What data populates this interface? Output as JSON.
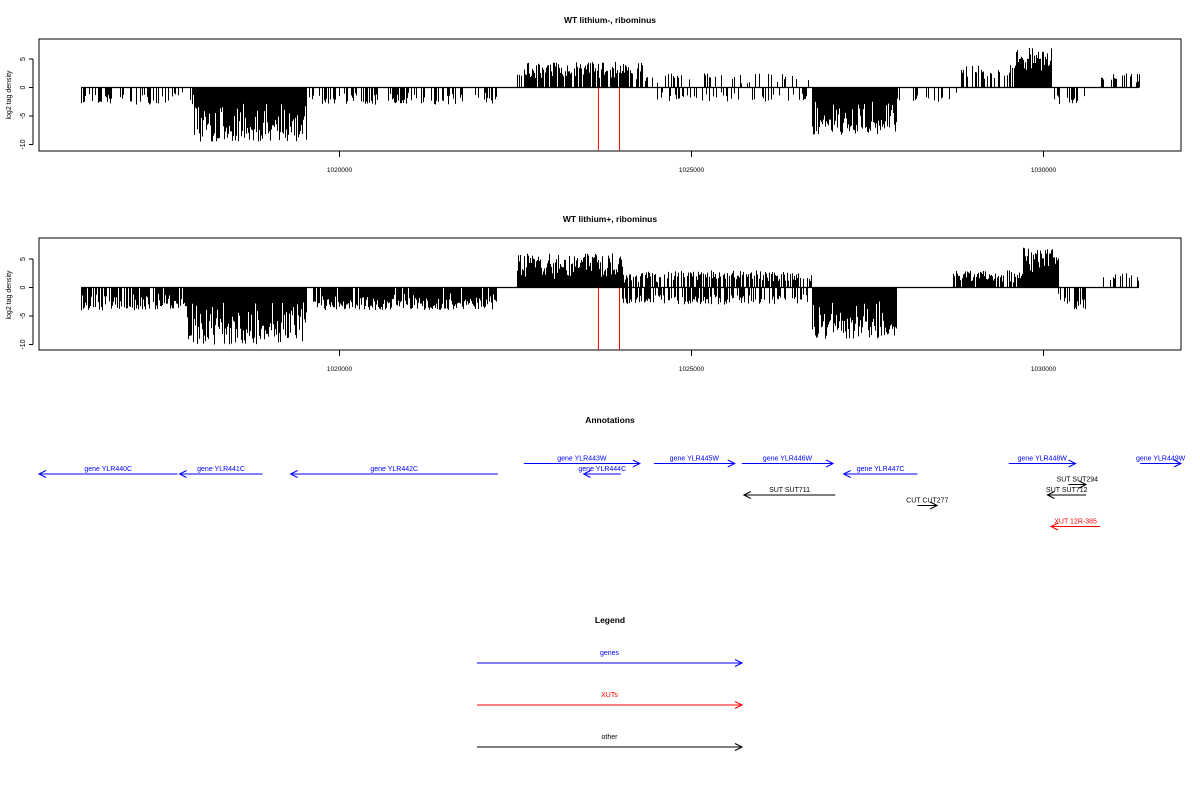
{
  "panels": [
    {
      "title": "WT lithium-, ribominus",
      "ylabel": "log2 tag density",
      "yticks": [
        "-10",
        "-5",
        "0",
        "5"
      ],
      "xticks": [
        "1020000",
        "1025000",
        "1030000"
      ]
    },
    {
      "title": "WT lithium+, ribominus",
      "ylabel": "log2 tag density",
      "yticks": [
        "-10",
        "-5",
        "0",
        "5"
      ],
      "xticks": [
        "1020000",
        "1025000",
        "1030000"
      ]
    }
  ],
  "annotations_title": "Annotations",
  "legend_title": "Legend",
  "colors": {
    "gene": "#0000ff",
    "xut": "#ff0000",
    "other": "#000000",
    "marker": "#ff0000"
  },
  "chart_data": [
    {
      "type": "bar",
      "title": "WT lithium-, ribominus",
      "ylabel": "log2 tag density",
      "xlabel": "",
      "xlim": [
        1015700,
        1031950
      ],
      "ylim": [
        -11.5,
        8.5
      ],
      "xticks": [
        1020000,
        1025000,
        1030000
      ],
      "yticks": [
        -10,
        -5,
        0,
        5
      ],
      "grid": false,
      "baseline_range": [
        1016300,
        1031350
      ],
      "markers": [
        1023660,
        1023960
      ],
      "marker_range": [
        -11,
        0
      ],
      "regions": [
        {
          "x": [
            1016300,
            1017900
          ],
          "amp": 3,
          "sign": -1,
          "density": 0.35
        },
        {
          "x": [
            1017900,
            1019500
          ],
          "amp": 9.5,
          "sign": -1,
          "density": 1.0
        },
        {
          "x": [
            1019500,
            1022200
          ],
          "amp": 3,
          "sign": -1,
          "density": 0.45
        },
        {
          "x": [
            1022500,
            1024300
          ],
          "amp": 4.5,
          "sign": 1,
          "density": 0.8
        },
        {
          "x": [
            1024300,
            1026700
          ],
          "amp": 2.5,
          "sign": 1,
          "density": 0.25
        },
        {
          "x": [
            1024500,
            1026700
          ],
          "amp": 2.5,
          "sign": -1,
          "density": 0.25
        },
        {
          "x": [
            1026700,
            1027900
          ],
          "amp": 8.5,
          "sign": -1,
          "density": 1.0
        },
        {
          "x": [
            1027900,
            1028800
          ],
          "amp": 2.5,
          "sign": -1,
          "density": 0.2
        },
        {
          "x": [
            1028800,
            1029600
          ],
          "amp": 4,
          "sign": 1,
          "density": 0.4
        },
        {
          "x": [
            1029600,
            1030100
          ],
          "amp": 7,
          "sign": 1,
          "density": 1.0
        },
        {
          "x": [
            1030100,
            1030600
          ],
          "amp": 3,
          "sign": -1,
          "density": 0.35
        },
        {
          "x": [
            1030800,
            1031350
          ],
          "amp": 2.5,
          "sign": 1,
          "density": 0.35
        }
      ]
    },
    {
      "type": "bar",
      "title": "WT lithium+, ribominus",
      "ylabel": "log2 tag density",
      "xlabel": "",
      "xlim": [
        1015700,
        1031950
      ],
      "ylim": [
        -11.5,
        8.5
      ],
      "xticks": [
        1020000,
        1025000,
        1030000
      ],
      "yticks": [
        -10,
        -5,
        0,
        5
      ],
      "grid": false,
      "baseline_range": [
        1016300,
        1031350
      ],
      "markers": [
        1023660,
        1023960
      ],
      "marker_range": [
        -11,
        0
      ],
      "regions": [
        {
          "x": [
            1016300,
            1017800
          ],
          "amp": 4,
          "sign": -1,
          "density": 0.8
        },
        {
          "x": [
            1017800,
            1019500
          ],
          "amp": 10,
          "sign": -1,
          "density": 1.0
        },
        {
          "x": [
            1019600,
            1022200
          ],
          "amp": 4,
          "sign": -1,
          "density": 0.9
        },
        {
          "x": [
            1022500,
            1024000
          ],
          "amp": 6,
          "sign": 1,
          "density": 1.0
        },
        {
          "x": [
            1024000,
            1026700
          ],
          "amp": 3,
          "sign": 1,
          "density": 0.7
        },
        {
          "x": [
            1024000,
            1026700
          ],
          "amp": 3,
          "sign": -1,
          "density": 0.6
        },
        {
          "x": [
            1026700,
            1027900
          ],
          "amp": 9,
          "sign": -1,
          "density": 1.0
        },
        {
          "x": [
            1028700,
            1029700
          ],
          "amp": 3,
          "sign": 1,
          "density": 0.8
        },
        {
          "x": [
            1029700,
            1030200
          ],
          "amp": 7,
          "sign": 1,
          "density": 1.0
        },
        {
          "x": [
            1030200,
            1030600
          ],
          "amp": 4,
          "sign": -1,
          "density": 0.6
        },
        {
          "x": [
            1030800,
            1031350
          ],
          "amp": 2.5,
          "sign": 1,
          "density": 0.35
        }
      ]
    }
  ],
  "annotations": [
    {
      "label": "gene YLR440C",
      "type": "gene",
      "dir": "left",
      "start": 1015700,
      "end": 1017670,
      "row": 2
    },
    {
      "label": "gene YLR441C",
      "type": "gene",
      "dir": "left",
      "start": 1017700,
      "end": 1018880,
      "row": 2
    },
    {
      "label": "gene YLR442C",
      "type": "gene",
      "dir": "left",
      "start": 1019280,
      "end": 1022230,
      "row": 2
    },
    {
      "label": "gene YLR443W",
      "type": "gene",
      "dir": "right",
      "start": 1022600,
      "end": 1024250,
      "row": 1
    },
    {
      "label": "gene YLR444C",
      "type": "gene",
      "dir": "left",
      "start": 1023450,
      "end": 1023980,
      "row": 2
    },
    {
      "label": "gene YLR445W",
      "type": "gene",
      "dir": "right",
      "start": 1024450,
      "end": 1025600,
      "row": 1
    },
    {
      "label": "gene YLR446W",
      "type": "gene",
      "dir": "right",
      "start": 1025700,
      "end": 1027000,
      "row": 1
    },
    {
      "label": "gene YLR447C",
      "type": "gene",
      "dir": "left",
      "start": 1027150,
      "end": 1028200,
      "row": 2
    },
    {
      "label": "gene YLR448W",
      "type": "gene",
      "dir": "right",
      "start": 1029500,
      "end": 1030450,
      "row": 1
    },
    {
      "label": "gene YLR449W",
      "type": "gene",
      "dir": "right",
      "start": 1031370,
      "end": 1031950,
      "row": 1
    },
    {
      "label": "SUT SUT711",
      "type": "other",
      "dir": "left",
      "start": 1025730,
      "end": 1027030,
      "row": 4
    },
    {
      "label": "CUT CUT277",
      "type": "other",
      "dir": "right",
      "start": 1028200,
      "end": 1028480,
      "row": 5
    },
    {
      "label": "SUT SUT294",
      "type": "other",
      "dir": "right",
      "start": 1030350,
      "end": 1030600,
      "row": 3
    },
    {
      "label": "SUT SUT712",
      "type": "other",
      "dir": "left",
      "start": 1030050,
      "end": 1030600,
      "row": 4
    },
    {
      "label": "XUT 12R-385",
      "type": "xut",
      "dir": "left",
      "start": 1030100,
      "end": 1030800,
      "row": 7
    }
  ],
  "legend": [
    {
      "label": "genes",
      "type": "gene"
    },
    {
      "label": "XUTs",
      "type": "xut"
    },
    {
      "label": "other",
      "type": "other"
    }
  ]
}
